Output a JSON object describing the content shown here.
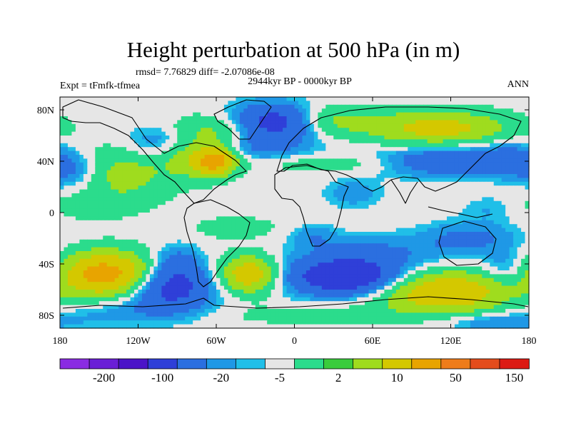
{
  "chart_data": {
    "type": "heatmap",
    "title": "Height perturbation at 500 hPa (in m)",
    "stats": "rmsd= 7.76829 diff= -2.07086e-08",
    "period": "2944kyr BP - 0000kyr BP",
    "experiment": "Expt = tFmfk-tfmea",
    "season": "ANN",
    "xlim": [
      -180,
      180
    ],
    "ylim": [
      -90,
      90
    ],
    "x_ticks": [
      {
        "value": -180,
        "label": "180"
      },
      {
        "value": -120,
        "label": "120W"
      },
      {
        "value": -60,
        "label": "60W"
      },
      {
        "value": 0,
        "label": "0"
      },
      {
        "value": 60,
        "label": "60E"
      },
      {
        "value": 120,
        "label": "120E"
      },
      {
        "value": 180,
        "label": "180"
      }
    ],
    "y_ticks": [
      {
        "value": 80,
        "label": "80N"
      },
      {
        "value": 40,
        "label": "40N"
      },
      {
        "value": 0,
        "label": "0"
      },
      {
        "value": -40,
        "label": "40S"
      },
      {
        "value": -80,
        "label": "80S"
      }
    ],
    "colorbar": {
      "labels": [
        "-200",
        "-100",
        "-20",
        "-5",
        "2",
        "10",
        "50",
        "150"
      ],
      "colors": [
        "#8a2be2",
        "#6a1fd6",
        "#4b14c8",
        "#2f3fd8",
        "#2b6fe0",
        "#1f98e6",
        "#20bfe8",
        "#e6e6e6",
        "#2bdc8c",
        "#39cc3c",
        "#9fdc1e",
        "#d4c800",
        "#e8a400",
        "#ee7c1a",
        "#e44c1c",
        "#dc1a14"
      ]
    },
    "field_palette": {
      "neutral": "#e6e6e6",
      "cyan": "#20bfe8",
      "lightblue": "#1f98e6",
      "blue": "#2b6fe0",
      "darkblue": "#2f3fd8",
      "green": "#2bdc8c",
      "lime": "#9fdc1e",
      "yellow": "#d4c800",
      "orange": "#e8a400"
    },
    "features": [
      {
        "lon": -130,
        "lat": 30,
        "sx": 25,
        "sy": 16,
        "amp": 8
      },
      {
        "lon": -160,
        "lat": 5,
        "sx": 22,
        "sy": 8,
        "amp": 3
      },
      {
        "lon": -170,
        "lat": 32,
        "sx": 14,
        "sy": 10,
        "amp": -6
      },
      {
        "lon": -100,
        "lat": 55,
        "sx": 22,
        "sy": 10,
        "amp": -7
      },
      {
        "lon": -75,
        "lat": 45,
        "sx": 18,
        "sy": 12,
        "amp": 12
      },
      {
        "lon": -60,
        "lat": 40,
        "sx": 10,
        "sy": 7,
        "amp": 20
      },
      {
        "lon": -60,
        "lat": 65,
        "sx": 28,
        "sy": 8,
        "amp": 6
      },
      {
        "lon": -15,
        "lat": 70,
        "sx": 22,
        "sy": 10,
        "amp": -18
      },
      {
        "lon": -25,
        "lat": 50,
        "sx": 28,
        "sy": 7,
        "amp": -5
      },
      {
        "lon": 30,
        "lat": 38,
        "sx": 40,
        "sy": 5,
        "amp": 4
      },
      {
        "lon": 25,
        "lat": 72,
        "sx": 25,
        "sy": 8,
        "amp": 7
      },
      {
        "lon": 110,
        "lat": 66,
        "sx": 38,
        "sy": 9,
        "amp": 15
      },
      {
        "lon": 115,
        "lat": 40,
        "sx": 35,
        "sy": 8,
        "amp": -10
      },
      {
        "lon": 165,
        "lat": 42,
        "sx": 15,
        "sy": 10,
        "amp": -6
      },
      {
        "lon": 45,
        "lat": 15,
        "sx": 15,
        "sy": 8,
        "amp": -4
      },
      {
        "lon": -45,
        "lat": -12,
        "sx": 22,
        "sy": 6,
        "amp": 4
      },
      {
        "lon": 15,
        "lat": -18,
        "sx": 12,
        "sy": 6,
        "amp": -4
      },
      {
        "lon": 135,
        "lat": -20,
        "sx": 25,
        "sy": 9,
        "amp": -6
      },
      {
        "lon": 150,
        "lat": 3,
        "sx": 14,
        "sy": 7,
        "amp": -2.5
      },
      {
        "lon": -145,
        "lat": -48,
        "sx": 25,
        "sy": 12,
        "amp": 25
      },
      {
        "lon": -95,
        "lat": -58,
        "sx": 22,
        "sy": 12,
        "amp": -16
      },
      {
        "lon": -90,
        "lat": -38,
        "sx": 12,
        "sy": 9,
        "amp": -6
      },
      {
        "lon": -35,
        "lat": -48,
        "sx": 15,
        "sy": 10,
        "amp": 18
      },
      {
        "lon": 40,
        "lat": -50,
        "sx": 30,
        "sy": 10,
        "amp": -22
      },
      {
        "lon": 60,
        "lat": -30,
        "sx": 40,
        "sy": 9,
        "amp": -5
      },
      {
        "lon": 115,
        "lat": -62,
        "sx": 35,
        "sy": 11,
        "amp": 20
      },
      {
        "lon": 165,
        "lat": -45,
        "sx": 14,
        "sy": 10,
        "amp": -6
      },
      {
        "lon": -130,
        "lat": -76,
        "sx": 40,
        "sy": 8,
        "amp": -4
      },
      {
        "lon": 20,
        "lat": -80,
        "sx": 60,
        "sy": 6,
        "amp": 3
      },
      {
        "lon": 150,
        "lat": -85,
        "sx": 30,
        "sy": 5,
        "amp": -5
      }
    ]
  }
}
